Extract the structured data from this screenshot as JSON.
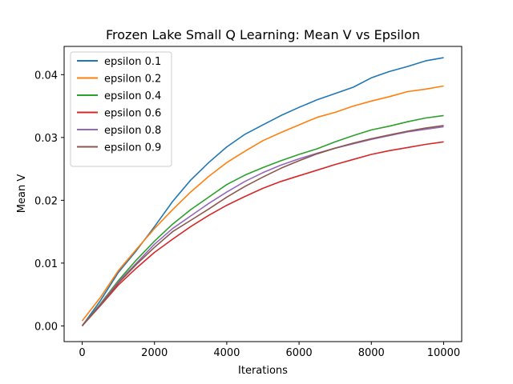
{
  "chart_data": {
    "type": "line",
    "title": "Frozen Lake Small Q Learning: Mean V vs Epsilon",
    "xlabel": "Iterations",
    "ylabel": "Mean V",
    "xlim": [
      -500,
      10500
    ],
    "ylim": [
      -0.0025,
      0.0445
    ],
    "xticks": [
      0,
      2000,
      4000,
      6000,
      8000,
      10000
    ],
    "xtick_labels": [
      "0",
      "2000",
      "4000",
      "6000",
      "8000",
      "10000"
    ],
    "yticks": [
      0.0,
      0.01,
      0.02,
      0.03,
      0.04
    ],
    "ytick_labels": [
      "0.00",
      "0.01",
      "0.02",
      "0.03",
      "0.04"
    ],
    "grid": false,
    "legend_position": "upper-left",
    "x": [
      0,
      500,
      1000,
      1500,
      2000,
      2500,
      3000,
      3500,
      4000,
      4500,
      5000,
      5500,
      6000,
      6500,
      7000,
      7500,
      8000,
      8500,
      9000,
      9500,
      10000
    ],
    "series": [
      {
        "name": "epsilon 0.1",
        "color": "#1f77b4",
        "values": [
          0.0,
          0.004,
          0.0085,
          0.012,
          0.0158,
          0.0198,
          0.0232,
          0.026,
          0.0285,
          0.0305,
          0.032,
          0.0335,
          0.0348,
          0.036,
          0.037,
          0.038,
          0.0395,
          0.0405,
          0.0413,
          0.0422,
          0.0427
        ]
      },
      {
        "name": "epsilon 0.2",
        "color": "#ff7f0e",
        "values": [
          0.0008,
          0.0045,
          0.0088,
          0.0122,
          0.0155,
          0.0185,
          0.0213,
          0.0238,
          0.026,
          0.0278,
          0.0295,
          0.0308,
          0.032,
          0.0332,
          0.034,
          0.035,
          0.0358,
          0.0365,
          0.0373,
          0.0377,
          0.0382
        ]
      },
      {
        "name": "epsilon 0.4",
        "color": "#2ca02c",
        "values": [
          0.0,
          0.0035,
          0.0072,
          0.0105,
          0.0135,
          0.0162,
          0.0185,
          0.0205,
          0.0225,
          0.024,
          0.0252,
          0.0263,
          0.0273,
          0.0282,
          0.0293,
          0.0303,
          0.0312,
          0.0318,
          0.0325,
          0.0331,
          0.0335
        ]
      },
      {
        "name": "epsilon 0.6",
        "color": "#d62728",
        "values": [
          0.0,
          0.0032,
          0.0065,
          0.0092,
          0.0117,
          0.0138,
          0.0158,
          0.0176,
          0.0192,
          0.0206,
          0.0219,
          0.023,
          0.0239,
          0.0248,
          0.0257,
          0.0265,
          0.0273,
          0.0279,
          0.0284,
          0.0289,
          0.0293
        ]
      },
      {
        "name": "epsilon 0.8",
        "color": "#9467bd",
        "values": [
          0.0,
          0.0034,
          0.007,
          0.01,
          0.013,
          0.0155,
          0.0175,
          0.0195,
          0.0213,
          0.023,
          0.0244,
          0.0256,
          0.0266,
          0.0275,
          0.0283,
          0.029,
          0.0297,
          0.0303,
          0.0309,
          0.0313,
          0.0317
        ]
      },
      {
        "name": "epsilon 0.9",
        "color": "#8c564b",
        "values": [
          0.0,
          0.0033,
          0.0068,
          0.0098,
          0.0125,
          0.015,
          0.0168,
          0.0186,
          0.0205,
          0.0222,
          0.0237,
          0.0251,
          0.0263,
          0.0274,
          0.0283,
          0.0291,
          0.0298,
          0.0304,
          0.031,
          0.0315,
          0.0319
        ]
      }
    ]
  }
}
